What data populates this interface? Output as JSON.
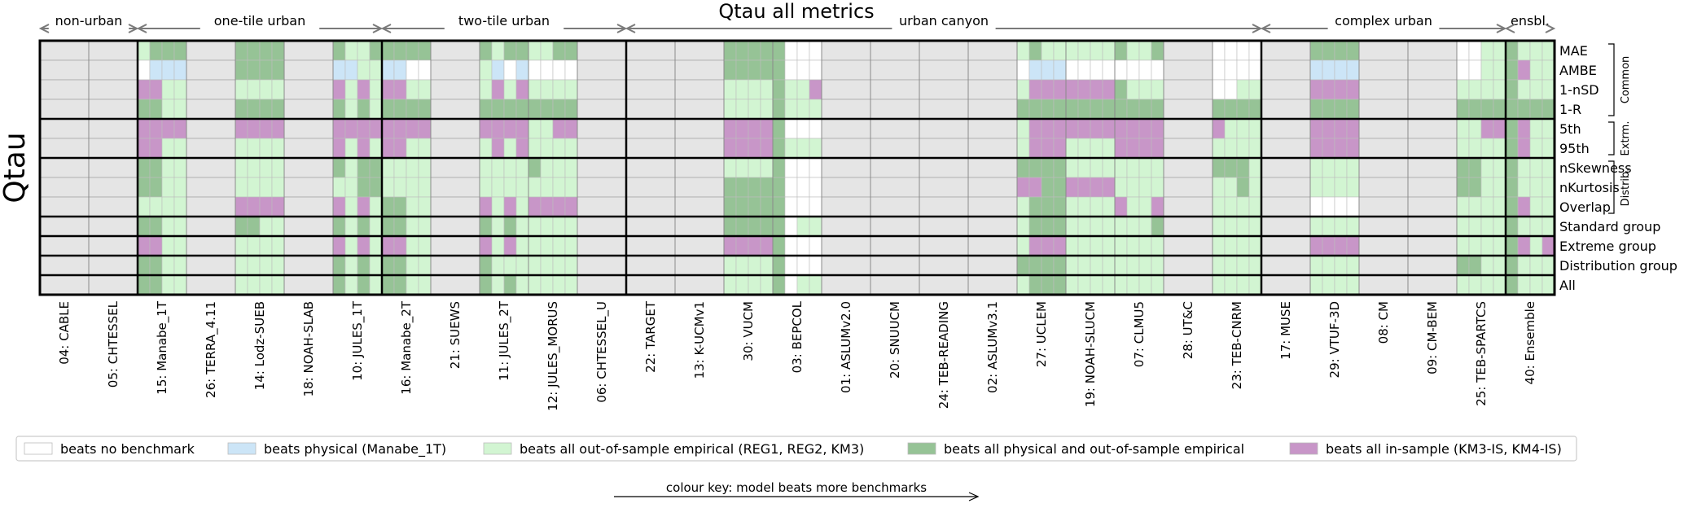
{
  "chart_data": {
    "type": "heatmap",
    "title": "Qtau all metrics",
    "ylabel": "Qtau",
    "group_headers": [
      {
        "label": "non-urban",
        "from": 0,
        "to": 2
      },
      {
        "label": "one-tile urban",
        "from": 2,
        "to": 7
      },
      {
        "label": "two-tile urban",
        "from": 7,
        "to": 12
      },
      {
        "label": "urban canyon",
        "from": 12,
        "to": 25
      },
      {
        "label": "complex urban",
        "from": 25,
        "to": 30
      },
      {
        "label": "ensbl.",
        "from": 30,
        "to": 31
      }
    ],
    "models": [
      "04: CABLE",
      "05: CHTESSEL",
      "15: Manabe_1T",
      "26: TERRA_4.11",
      "14: Lodz-SUEB",
      "18: NOAH-SLAB",
      "10: JULES_1T",
      "16: Manabe_2T",
      "21: SUEWS",
      "11: JULES_2T",
      "12: JULES_MORUS",
      "06: CHTESSEL_U",
      "22: TARGET",
      "13: K-UCMv1",
      "30: VUCM",
      "03: BEPCOL",
      "01: ASLUMv2.0",
      "20: SNUUCM",
      "24: TEB-READING",
      "02: ASLUMv3.1",
      "27: UCLEM",
      "19: NOAH-SLUCM",
      "07: CLMU5",
      "28: UT&C",
      "23: TEB-CNRM",
      "17: MUSE",
      "29: VTUF-3D",
      "08: CM",
      "09: CM-BEM",
      "25: TEB-SPARTCS",
      "40: Ensemble"
    ],
    "metrics": [
      "MAE",
      "AMBE",
      "1-nSD",
      "1-R",
      "5th",
      "95th",
      "nSkewness",
      "nKurtosis",
      "Overlap",
      "Standard group",
      "Extreme group",
      "Distribution group",
      "All"
    ],
    "metric_groups": [
      {
        "label": "Common",
        "from": 0,
        "to": 4
      },
      {
        "label": "Extrm.",
        "from": 4,
        "to": 6
      },
      {
        "label": "Distrib.",
        "from": 6,
        "to": 9
      }
    ],
    "categories": {
      "N": {
        "label": "beats no benchmark",
        "color": "#ffffff"
      },
      "P": {
        "label": "beats physical (Manabe_1T)",
        "color": "#cce5f7"
      },
      "E": {
        "label": "beats all out-of-sample empirical (REG1, REG2, KM3)",
        "color": "#d2f5d2"
      },
      "G": {
        "label": "beats all physical and out-of-sample empirical",
        "color": "#96c396"
      },
      "I": {
        "label": "beats all in-sample (KM3-IS, KM4-IS)",
        "color": "#c896c8"
      }
    },
    "missing_color": "#e5e5e5",
    "colour_key_label": "colour key: model beats more benchmarks",
    "rows": [
      [
        "XX",
        "XX",
        "EGGG",
        "XX",
        "GGGG",
        "XX",
        "GEEG",
        "GGGG",
        "XX",
        "GEGG",
        "EEGG",
        "XX",
        "XX",
        "XX",
        "GGGG",
        "GNNN",
        "XX",
        "XX",
        "XX",
        "XX",
        "EGEE",
        "EEEE",
        "GEEG",
        "XX",
        "NNNN",
        "XX",
        "GGGG",
        "XX",
        "XX",
        "NNEE",
        "GEEE"
      ],
      [
        "XX",
        "XX",
        "NPPP",
        "XX",
        "GGGG",
        "XX",
        "PPEE",
        "PPNN",
        "XX",
        "EPNP",
        "NNNN",
        "XX",
        "XX",
        "XX",
        "GGGG",
        "GNNN",
        "XX",
        "XX",
        "XX",
        "XX",
        "NPPP",
        "NNNN",
        "NNNN",
        "XX",
        "NNNN",
        "XX",
        "PPPP",
        "XX",
        "XX",
        "NNEE",
        "GIEE"
      ],
      [
        "XX",
        "XX",
        "IIEE",
        "XX",
        "EEEE",
        "XX",
        "IEIE",
        "IIEE",
        "XX",
        "EIEI",
        "EEEE",
        "XX",
        "XX",
        "XX",
        "EEEE",
        "GEEI",
        "XX",
        "XX",
        "XX",
        "XX",
        "EIII",
        "IIII",
        "GEEE",
        "XX",
        "NNEE",
        "XX",
        "IIII",
        "XX",
        "XX",
        "EEEE",
        "GEEE"
      ],
      [
        "XX",
        "XX",
        "GGEE",
        "XX",
        "GGGG",
        "XX",
        "GEGE",
        "GGGG",
        "XX",
        "GGGG",
        "GGGG",
        "XX",
        "XX",
        "XX",
        "EEEE",
        "GEEE",
        "XX",
        "XX",
        "XX",
        "XX",
        "GGGG",
        "GGGG",
        "GGGG",
        "XX",
        "GGGG",
        "XX",
        "GGGG",
        "XX",
        "XX",
        "GGGG",
        "GGGG"
      ],
      [
        "XX",
        "XX",
        "IIII",
        "XX",
        "IIII",
        "XX",
        "IIII",
        "IIII",
        "XX",
        "IIII",
        "EEII",
        "XX",
        "XX",
        "XX",
        "IIII",
        "GNNN",
        "XX",
        "XX",
        "XX",
        "XX",
        "EIII",
        "IIII",
        "IIII",
        "XX",
        "IEEE",
        "XX",
        "IIII",
        "XX",
        "XX",
        "EEII",
        "GIEE"
      ],
      [
        "XX",
        "XX",
        "IIEE",
        "XX",
        "EEEE",
        "XX",
        "IEIE",
        "IIEE",
        "XX",
        "EIEI",
        "EEEE",
        "XX",
        "XX",
        "XX",
        "IIII",
        "GEEE",
        "XX",
        "XX",
        "XX",
        "XX",
        "EIII",
        "EEEE",
        "IIII",
        "XX",
        "EEEE",
        "XX",
        "IIII",
        "XX",
        "XX",
        "EEEE",
        "GIEE"
      ],
      [
        "XX",
        "XX",
        "GGEE",
        "XX",
        "EEEE",
        "XX",
        "GEGG",
        "EEEE",
        "XX",
        "EEEE",
        "GEEE",
        "XX",
        "XX",
        "XX",
        "EEEE",
        "GNNN",
        "XX",
        "XX",
        "XX",
        "XX",
        "GGGG",
        "EEEE",
        "EEEE",
        "XX",
        "GGGE",
        "XX",
        "EEEE",
        "XX",
        "XX",
        "GGEE",
        "GEEE"
      ],
      [
        "XX",
        "XX",
        "GGEE",
        "XX",
        "EEEE",
        "XX",
        "EEGG",
        "EEEE",
        "XX",
        "EEEE",
        "EEEE",
        "XX",
        "XX",
        "XX",
        "GGGG",
        "GNNN",
        "XX",
        "XX",
        "XX",
        "XX",
        "IIGG",
        "IIII",
        "EEEE",
        "XX",
        "EEGE",
        "XX",
        "EEEE",
        "XX",
        "XX",
        "GGEE",
        "GEEE"
      ],
      [
        "XX",
        "XX",
        "EEEE",
        "XX",
        "IIII",
        "XX",
        "IEIE",
        "GGEE",
        "XX",
        "IEIE",
        "IIII",
        "XX",
        "XX",
        "XX",
        "GGGG",
        "GNNN",
        "XX",
        "XX",
        "XX",
        "XX",
        "EGGG",
        "EEEE",
        "IEEI",
        "XX",
        "EEEE",
        "XX",
        "NNNN",
        "XX",
        "XX",
        "EEEE",
        "GIEE"
      ],
      [
        "XX",
        "XX",
        "GGEE",
        "XX",
        "GGEE",
        "XX",
        "GEGE",
        "GGEE",
        "XX",
        "GEGE",
        "EEEE",
        "XX",
        "XX",
        "XX",
        "GGGG",
        "GNEE",
        "XX",
        "XX",
        "XX",
        "XX",
        "EGGG",
        "EEEE",
        "EEEG",
        "XX",
        "EEEE",
        "XX",
        "EEEE",
        "XX",
        "XX",
        "EEEE",
        "GEEE"
      ],
      [
        "XX",
        "XX",
        "IIEE",
        "XX",
        "EEEE",
        "XX",
        "IEIE",
        "IIEE",
        "XX",
        "IEIE",
        "EEEE",
        "XX",
        "XX",
        "XX",
        "IIII",
        "GNNN",
        "XX",
        "XX",
        "XX",
        "XX",
        "EIII",
        "EEEE",
        "EEEE",
        "XX",
        "EEEE",
        "XX",
        "IIII",
        "XX",
        "XX",
        "EEEE",
        "GIEI"
      ],
      [
        "XX",
        "XX",
        "GGEE",
        "XX",
        "EEEE",
        "XX",
        "GEGE",
        "GGEE",
        "XX",
        "GEEE",
        "EEEE",
        "XX",
        "XX",
        "XX",
        "EEEE",
        "GNNN",
        "XX",
        "XX",
        "XX",
        "XX",
        "GGGG",
        "EEEE",
        "EEEE",
        "XX",
        "EEEE",
        "XX",
        "EEEE",
        "XX",
        "XX",
        "GGEE",
        "GEEE"
      ],
      [
        "XX",
        "XX",
        "GGEE",
        "XX",
        "EEEE",
        "XX",
        "GEGE",
        "GGEE",
        "XX",
        "GEGE",
        "EEEE",
        "XX",
        "XX",
        "XX",
        "EEEE",
        "GNEE",
        "XX",
        "XX",
        "XX",
        "XX",
        "EGGG",
        "EEEE",
        "EEEE",
        "XX",
        "EEEE",
        "XX",
        "EEEE",
        "XX",
        "XX",
        "EEEE",
        "GEEE"
      ]
    ]
  }
}
